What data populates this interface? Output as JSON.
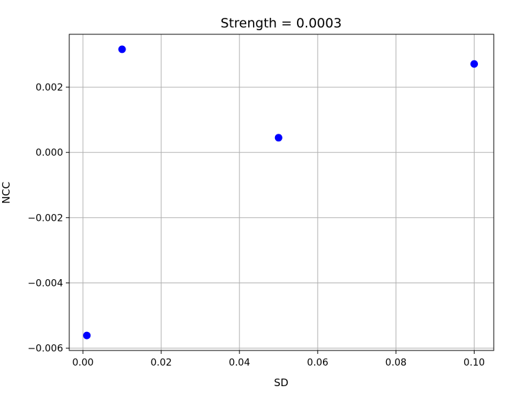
{
  "chart_data": {
    "type": "scatter",
    "title": "Strength = 0.0003",
    "xlabel": "SD",
    "ylabel": "NCC",
    "xlim": [
      -0.0035,
      0.105
    ],
    "ylim": [
      -0.00607,
      0.00362
    ],
    "x_ticks": [
      0.0,
      0.02,
      0.04,
      0.06,
      0.08,
      0.1
    ],
    "x_tick_labels": [
      "0.00",
      "0.02",
      "0.04",
      "0.06",
      "0.08",
      "0.10"
    ],
    "y_ticks": [
      -0.006,
      -0.004,
      -0.002,
      0.0,
      0.002
    ],
    "y_tick_labels": [
      "−0.006",
      "−0.004",
      "−0.002",
      "0.000",
      "0.002"
    ],
    "grid": true,
    "legend": false,
    "series": [
      {
        "color": "#0000ff",
        "points": [
          {
            "x": 0.001,
            "y": -0.00561
          },
          {
            "x": 0.01,
            "y": 0.00316
          },
          {
            "x": 0.05,
            "y": 0.00045
          },
          {
            "x": 0.1,
            "y": 0.00271
          }
        ]
      }
    ]
  }
}
